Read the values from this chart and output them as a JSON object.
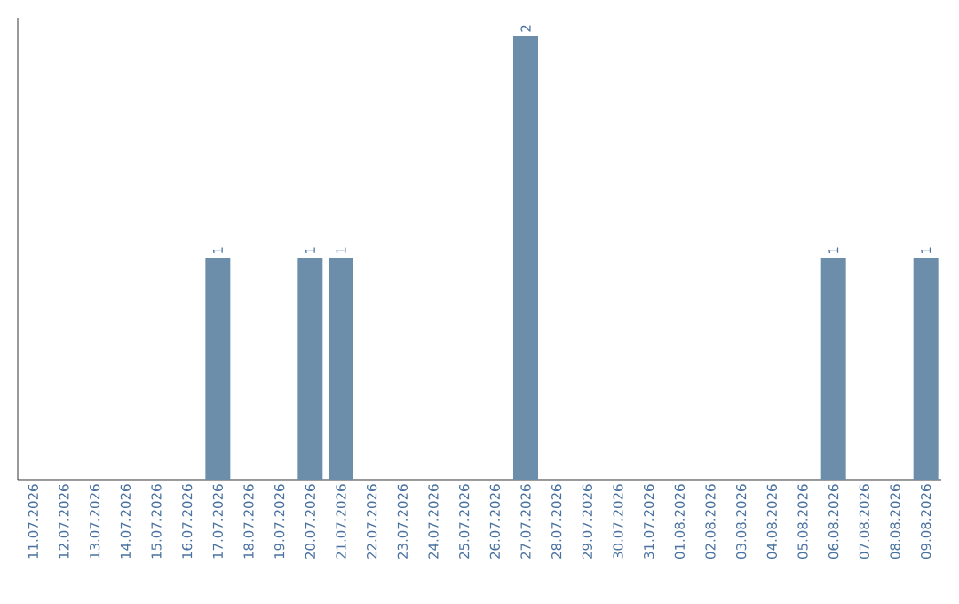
{
  "chart_data": {
    "type": "bar",
    "categories": [
      "11.07.2026",
      "12.07.2026",
      "13.07.2026",
      "14.07.2026",
      "15.07.2026",
      "16.07.2026",
      "17.07.2026",
      "18.07.2026",
      "19.07.2026",
      "20.07.2026",
      "21.07.2026",
      "22.07.2026",
      "23.07.2026",
      "24.07.2026",
      "25.07.2026",
      "26.07.2026",
      "27.07.2026",
      "28.07.2026",
      "29.07.2026",
      "30.07.2026",
      "31.07.2026",
      "01.08.2026",
      "02.08.2026",
      "03.08.2026",
      "04.08.2026",
      "05.08.2026",
      "06.08.2026",
      "07.08.2026",
      "08.08.2026",
      "09.08.2026"
    ],
    "values": [
      0,
      0,
      0,
      0,
      0,
      0,
      1,
      0,
      0,
      1,
      1,
      0,
      0,
      0,
      0,
      0,
      2,
      0,
      0,
      0,
      0,
      0,
      0,
      0,
      0,
      0,
      1,
      0,
      0,
      1
    ],
    "color": "#6d8eab",
    "value_labels": [
      null,
      null,
      null,
      null,
      null,
      null,
      "1",
      null,
      null,
      "1",
      "1",
      null,
      null,
      null,
      null,
      null,
      "2",
      null,
      null,
      null,
      null,
      null,
      null,
      null,
      null,
      null,
      "1",
      null,
      null,
      "1"
    ],
    "tick_labels": "x"
  }
}
